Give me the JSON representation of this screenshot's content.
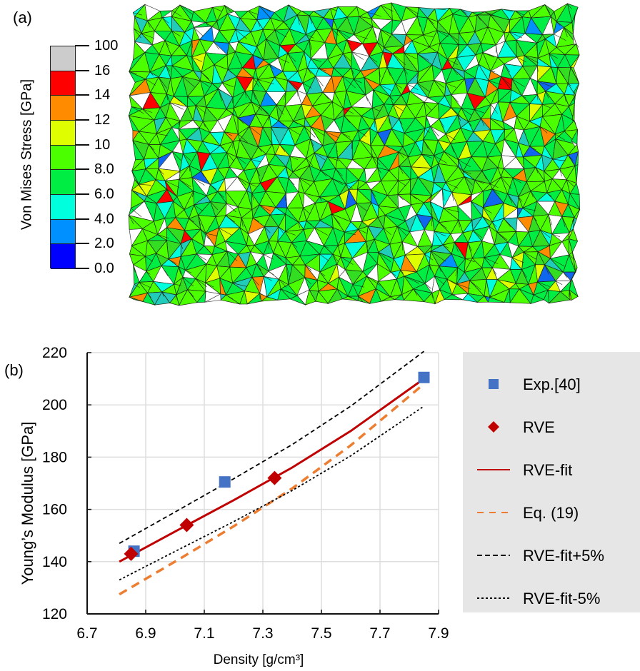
{
  "panel_a": {
    "label": "(a)",
    "image_description": "finite element mesh of porous sintered material colored by von Mises stress",
    "colorbar": {
      "title": "Von Mises Stress [GPa]",
      "ticks": [
        "100",
        "16",
        "14",
        "12",
        "10",
        "8.0",
        "6.0",
        "4.0",
        "2.0",
        "0.0"
      ],
      "bands": [
        {
          "range": "16-100",
          "color": "#cccccc"
        },
        {
          "range": "14-16",
          "color": "#ff0000"
        },
        {
          "range": "12-14",
          "color": "#ff8c00"
        },
        {
          "range": "10-12",
          "color": "#dfff00"
        },
        {
          "range": "8-10",
          "color": "#4cff00"
        },
        {
          "range": "6-8",
          "color": "#00ee44"
        },
        {
          "range": "4-6",
          "color": "#00ffdd"
        },
        {
          "range": "2-4",
          "color": "#0090ff"
        },
        {
          "range": "0-2",
          "color": "#0000ff"
        }
      ]
    }
  },
  "panel_b": {
    "label": "(b)"
  },
  "chart_data": {
    "type": "scatter",
    "title": "",
    "xlabel": "Density [g/cm³]",
    "ylabel": "Young’s Modulus [GPa]",
    "xlim": [
      6.7,
      7.9
    ],
    "ylim": [
      120,
      220
    ],
    "xticks": [
      "6.7",
      "6.9",
      "7.1",
      "7.3",
      "7.5",
      "7.7",
      "7.9"
    ],
    "yticks": [
      "120",
      "140",
      "160",
      "180",
      "200",
      "220"
    ],
    "grid": true,
    "legend_position": "right",
    "series": [
      {
        "name": "Exp.[40]",
        "kind": "marker-square",
        "color": "#4472c4",
        "x": [
          6.86,
          7.17,
          7.85
        ],
        "y": [
          144,
          170.5,
          210.5
        ]
      },
      {
        "name": "RVE",
        "kind": "marker-diamond",
        "color": "#c00000",
        "x": [
          6.85,
          7.04,
          7.34
        ],
        "y": [
          143,
          154,
          172
        ]
      },
      {
        "name": "RVE-fit",
        "kind": "line-solid",
        "color": "#c00000",
        "x": [
          6.81,
          7.0,
          7.2,
          7.4,
          7.6,
          7.85
        ],
        "y": [
          140,
          151.5,
          163.5,
          176,
          190,
          210
        ]
      },
      {
        "name": "Eq. (19)",
        "kind": "line-longdash",
        "color": "#ed7d31",
        "x": [
          6.81,
          7.0,
          7.2,
          7.4,
          7.6,
          7.85
        ],
        "y": [
          127.5,
          140,
          153.5,
          168,
          184.5,
          208
        ]
      },
      {
        "name": "RVE-fit+5%",
        "kind": "line-dash",
        "color": "#000000",
        "x": [
          6.81,
          7.0,
          7.2,
          7.4,
          7.6,
          7.85
        ],
        "y": [
          147,
          159,
          171.7,
          184.8,
          199.5,
          220.5
        ]
      },
      {
        "name": "RVE-fit-5%",
        "kind": "line-dot",
        "color": "#000000",
        "x": [
          6.81,
          7.0,
          7.2,
          7.4,
          7.6,
          7.85
        ],
        "y": [
          133,
          143.9,
          155.3,
          167.2,
          180.5,
          199.5
        ]
      }
    ]
  }
}
